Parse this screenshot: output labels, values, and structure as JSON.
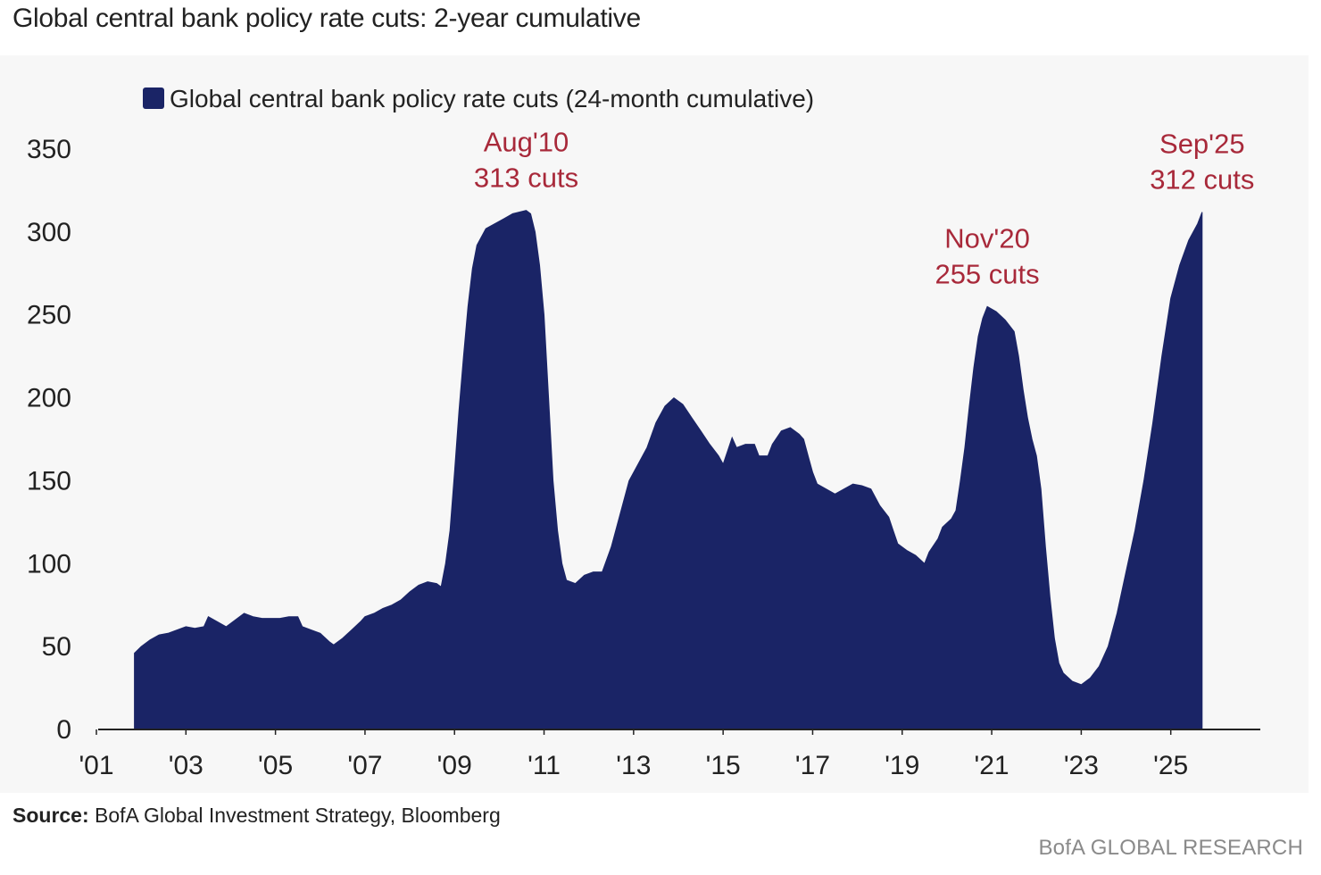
{
  "header": {
    "title": "Global central bank policy rate cuts: 2-year cumulative"
  },
  "footer": {
    "source_label": "Source:",
    "source_text": "BofA Global Investment Strategy, Bloomberg",
    "brand": "BofA GLOBAL RESEARCH"
  },
  "colors": {
    "area": "#1a2466",
    "annotation": "#a8293a",
    "axis": "#222222",
    "panel": "#f7f7f7"
  },
  "chart_data": {
    "type": "area",
    "title": "Global central bank policy rate cuts: 2-year cumulative",
    "xlabel": "",
    "ylabel": "",
    "ylim": [
      0,
      350
    ],
    "xlim": [
      2001.0,
      2027.0
    ],
    "yticks": [
      0,
      50,
      100,
      150,
      200,
      250,
      300,
      350
    ],
    "xtick_labels": [
      "'01",
      "'03",
      "'05",
      "'07",
      "'09",
      "'11",
      "'13",
      "'15",
      "'17",
      "'19",
      "'21",
      "'23",
      "'25"
    ],
    "xtick_years": [
      2001,
      2003,
      2005,
      2007,
      2009,
      2011,
      2013,
      2015,
      2017,
      2019,
      2021,
      2023,
      2025
    ],
    "grid": false,
    "legend_position": "top-left",
    "series": [
      {
        "name": "Global central bank policy rate cuts (24-month cumulative)",
        "points": [
          [
            2001.85,
            46
          ],
          [
            2002.0,
            50
          ],
          [
            2002.2,
            54
          ],
          [
            2002.4,
            57
          ],
          [
            2002.6,
            58
          ],
          [
            2002.8,
            60
          ],
          [
            2003.0,
            62
          ],
          [
            2003.2,
            61
          ],
          [
            2003.4,
            62
          ],
          [
            2003.5,
            68
          ],
          [
            2003.7,
            65
          ],
          [
            2003.9,
            62
          ],
          [
            2004.1,
            66
          ],
          [
            2004.3,
            70
          ],
          [
            2004.5,
            68
          ],
          [
            2004.7,
            67
          ],
          [
            2004.9,
            67
          ],
          [
            2005.1,
            67
          ],
          [
            2005.3,
            68
          ],
          [
            2005.5,
            68
          ],
          [
            2005.6,
            62
          ],
          [
            2005.8,
            60
          ],
          [
            2006.0,
            58
          ],
          [
            2006.2,
            53
          ],
          [
            2006.3,
            51
          ],
          [
            2006.5,
            55
          ],
          [
            2006.7,
            60
          ],
          [
            2006.9,
            65
          ],
          [
            2007.0,
            68
          ],
          [
            2007.2,
            70
          ],
          [
            2007.4,
            73
          ],
          [
            2007.6,
            75
          ],
          [
            2007.8,
            78
          ],
          [
            2008.0,
            83
          ],
          [
            2008.2,
            87
          ],
          [
            2008.4,
            89
          ],
          [
            2008.6,
            88
          ],
          [
            2008.7,
            86
          ],
          [
            2008.8,
            100
          ],
          [
            2008.9,
            120
          ],
          [
            2009.0,
            155
          ],
          [
            2009.1,
            192
          ],
          [
            2009.2,
            225
          ],
          [
            2009.3,
            255
          ],
          [
            2009.4,
            278
          ],
          [
            2009.5,
            292
          ],
          [
            2009.7,
            302
          ],
          [
            2009.9,
            305
          ],
          [
            2010.1,
            308
          ],
          [
            2010.3,
            311
          ],
          [
            2010.6,
            313
          ],
          [
            2010.7,
            311
          ],
          [
            2010.8,
            300
          ],
          [
            2010.9,
            280
          ],
          [
            2011.0,
            250
          ],
          [
            2011.1,
            200
          ],
          [
            2011.2,
            150
          ],
          [
            2011.3,
            120
          ],
          [
            2011.4,
            100
          ],
          [
            2011.5,
            90
          ],
          [
            2011.7,
            88
          ],
          [
            2011.9,
            93
          ],
          [
            2012.1,
            95
          ],
          [
            2012.3,
            95
          ],
          [
            2012.5,
            110
          ],
          [
            2012.7,
            130
          ],
          [
            2012.9,
            150
          ],
          [
            2013.1,
            160
          ],
          [
            2013.3,
            170
          ],
          [
            2013.5,
            185
          ],
          [
            2013.7,
            195
          ],
          [
            2013.9,
            200
          ],
          [
            2014.1,
            196
          ],
          [
            2014.3,
            188
          ],
          [
            2014.5,
            180
          ],
          [
            2014.7,
            172
          ],
          [
            2014.9,
            165
          ],
          [
            2015.0,
            160
          ],
          [
            2015.1,
            168
          ],
          [
            2015.2,
            176
          ],
          [
            2015.3,
            170
          ],
          [
            2015.5,
            172
          ],
          [
            2015.7,
            172
          ],
          [
            2015.8,
            165
          ],
          [
            2016.0,
            165
          ],
          [
            2016.1,
            172
          ],
          [
            2016.3,
            180
          ],
          [
            2016.5,
            182
          ],
          [
            2016.7,
            178
          ],
          [
            2016.8,
            175
          ],
          [
            2016.9,
            165
          ],
          [
            2017.0,
            155
          ],
          [
            2017.1,
            148
          ],
          [
            2017.3,
            145
          ],
          [
            2017.5,
            142
          ],
          [
            2017.7,
            145
          ],
          [
            2017.9,
            148
          ],
          [
            2018.1,
            147
          ],
          [
            2018.3,
            145
          ],
          [
            2018.5,
            135
          ],
          [
            2018.7,
            128
          ],
          [
            2018.8,
            120
          ],
          [
            2018.9,
            112
          ],
          [
            2019.1,
            108
          ],
          [
            2019.3,
            105
          ],
          [
            2019.5,
            100
          ],
          [
            2019.6,
            107
          ],
          [
            2019.8,
            115
          ],
          [
            2019.9,
            122
          ],
          [
            2020.1,
            127
          ],
          [
            2020.2,
            132
          ],
          [
            2020.3,
            150
          ],
          [
            2020.4,
            170
          ],
          [
            2020.5,
            195
          ],
          [
            2020.6,
            218
          ],
          [
            2020.7,
            237
          ],
          [
            2020.8,
            248
          ],
          [
            2020.9,
            255
          ],
          [
            2021.1,
            252
          ],
          [
            2021.3,
            247
          ],
          [
            2021.5,
            240
          ],
          [
            2021.6,
            225
          ],
          [
            2021.7,
            205
          ],
          [
            2021.8,
            188
          ],
          [
            2021.9,
            175
          ],
          [
            2022.0,
            165
          ],
          [
            2022.1,
            145
          ],
          [
            2022.2,
            110
          ],
          [
            2022.3,
            80
          ],
          [
            2022.4,
            55
          ],
          [
            2022.5,
            40
          ],
          [
            2022.6,
            34
          ],
          [
            2022.8,
            29
          ],
          [
            2023.0,
            27
          ],
          [
            2023.2,
            31
          ],
          [
            2023.4,
            38
          ],
          [
            2023.6,
            50
          ],
          [
            2023.8,
            70
          ],
          [
            2024.0,
            95
          ],
          [
            2024.2,
            120
          ],
          [
            2024.4,
            150
          ],
          [
            2024.6,
            185
          ],
          [
            2024.8,
            225
          ],
          [
            2025.0,
            260
          ],
          [
            2025.2,
            280
          ],
          [
            2025.4,
            295
          ],
          [
            2025.6,
            305
          ],
          [
            2025.7,
            312
          ]
        ]
      }
    ],
    "annotations": [
      {
        "label_line1": "Aug'10",
        "label_line2": "313 cuts",
        "x": 2010.6,
        "y": 313
      },
      {
        "label_line1": "Nov'20",
        "label_line2": "255 cuts",
        "x": 2020.9,
        "y": 255
      },
      {
        "label_line1": "Sep'25",
        "label_line2": "312 cuts",
        "x": 2025.7,
        "y": 312
      }
    ]
  }
}
